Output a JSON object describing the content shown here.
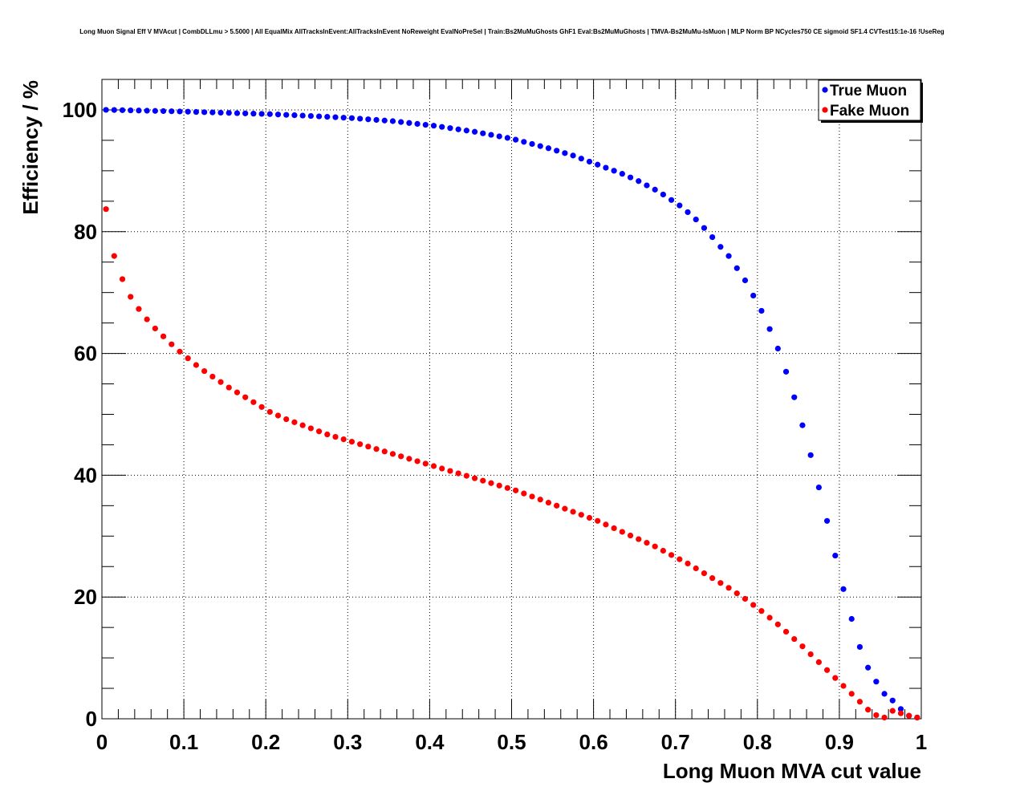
{
  "chart_data": {
    "type": "scatter",
    "title": "Long Muon Signal Eff V MVAcut | CombDLLmu > 5.5000 | All EqualMix AllTracksInEvent:AllTracksInEvent NoReweight EvalNoPreSel | Train:Bs2MuMuGhosts GhF1 Eval:Bs2MuMuGhosts | TMVA-Bs2MuMu-IsMuon | MLP Norm BP NCycles750 CE sigmoid SF1.4 CVTest15:1e-16 !UseReg",
    "xlabel": "Long Muon MVA cut value",
    "ylabel": "Efficiency / %",
    "xlim": [
      0,
      1
    ],
    "ylim": [
      0,
      105
    ],
    "xticks": [
      0,
      0.1,
      0.2,
      0.3,
      0.4,
      0.5,
      0.6,
      0.7,
      0.8,
      0.9,
      1
    ],
    "xtick_labels": [
      "0",
      "0.1",
      "0.2",
      "0.3",
      "0.4",
      "0.5",
      "0.6",
      "0.7",
      "0.8",
      "0.9",
      "1"
    ],
    "yticks": [
      0,
      20,
      40,
      60,
      80,
      100
    ],
    "ytick_labels": [
      "0",
      "20",
      "40",
      "60",
      "80",
      "100"
    ],
    "grid": true,
    "legend_position": "top-right",
    "x": [
      0.005,
      0.015,
      0.025,
      0.035,
      0.045,
      0.055,
      0.065,
      0.075,
      0.085,
      0.095,
      0.105,
      0.115,
      0.125,
      0.135,
      0.145,
      0.155,
      0.165,
      0.175,
      0.185,
      0.195,
      0.205,
      0.215,
      0.225,
      0.235,
      0.245,
      0.255,
      0.265,
      0.275,
      0.285,
      0.295,
      0.305,
      0.315,
      0.325,
      0.335,
      0.345,
      0.355,
      0.365,
      0.375,
      0.385,
      0.395,
      0.405,
      0.415,
      0.425,
      0.435,
      0.445,
      0.455,
      0.465,
      0.475,
      0.485,
      0.495,
      0.505,
      0.515,
      0.525,
      0.535,
      0.545,
      0.555,
      0.565,
      0.575,
      0.585,
      0.595,
      0.605,
      0.615,
      0.625,
      0.635,
      0.645,
      0.655,
      0.665,
      0.675,
      0.685,
      0.695,
      0.705,
      0.715,
      0.725,
      0.735,
      0.745,
      0.755,
      0.765,
      0.775,
      0.785,
      0.795,
      0.805,
      0.815,
      0.825,
      0.835,
      0.845,
      0.855,
      0.865,
      0.875,
      0.885,
      0.895,
      0.905,
      0.915,
      0.925,
      0.935,
      0.945,
      0.955,
      0.965,
      0.975,
      0.985,
      0.995
    ],
    "series": [
      {
        "name": "True Muon",
        "color": "#0000ff",
        "values": [
          100,
          99.98,
          99.95,
          99.92,
          99.89,
          99.86,
          99.83,
          99.8,
          99.77,
          99.74,
          99.7,
          99.66,
          99.62,
          99.58,
          99.54,
          99.5,
          99.46,
          99.42,
          99.38,
          99.34,
          99.3,
          99.24,
          99.18,
          99.12,
          99.06,
          99,
          98.93,
          98.86,
          98.79,
          98.72,
          98.65,
          98.55,
          98.45,
          98.35,
          98.25,
          98.15,
          98.0,
          97.85,
          97.7,
          97.55,
          97.4,
          97.2,
          97.0,
          96.8,
          96.6,
          96.4,
          96.15,
          95.9,
          95.65,
          95.4,
          95.1,
          94.75,
          94.4,
          94.05,
          93.7,
          93.3,
          92.9,
          92.5,
          92.0,
          91.5,
          91.0,
          90.5,
          90.0,
          89.5,
          88.9,
          88.3,
          87.6,
          86.9,
          86.1,
          85.2,
          84.3,
          83.2,
          82.0,
          80.6,
          79.1,
          77.5,
          76.0,
          74.0,
          72.0,
          69.5,
          67.0,
          64.0,
          60.8,
          57.0,
          52.8,
          48.2,
          43.3,
          38.0,
          32.5,
          26.8,
          21.3,
          16.4,
          11.8,
          8.4,
          6.1,
          4.1,
          3.0,
          1.6,
          0.5,
          0.2
        ]
      },
      {
        "name": "Fake Muon",
        "color": "#ff0000",
        "values": [
          83.7,
          76.0,
          72.2,
          69.3,
          67.3,
          65.6,
          64.1,
          62.8,
          61.5,
          60.3,
          59.2,
          58.1,
          57.1,
          56.2,
          55.3,
          54.4,
          53.6,
          52.8,
          52.0,
          51.2,
          50.4,
          49.8,
          49.2,
          48.7,
          48.2,
          47.7,
          47.2,
          46.7,
          46.3,
          45.9,
          45.5,
          45.1,
          44.7,
          44.3,
          43.9,
          43.5,
          43.1,
          42.7,
          42.3,
          41.9,
          41.5,
          41.1,
          40.7,
          40.3,
          39.9,
          39.5,
          39.1,
          38.7,
          38.3,
          37.9,
          37.5,
          37.0,
          36.5,
          36.0,
          35.5,
          35.0,
          34.5,
          34.0,
          33.5,
          33.0,
          32.5,
          31.9,
          31.3,
          30.7,
          30.1,
          29.5,
          28.9,
          28.3,
          27.6,
          26.9,
          26.2,
          25.5,
          24.7,
          23.9,
          23.1,
          22.3,
          21.5,
          20.6,
          19.7,
          18.7,
          17.7,
          16.6,
          15.5,
          14.3,
          13.1,
          11.9,
          10.6,
          9.3,
          8.0,
          6.7,
          5.4,
          4.1,
          2.8,
          1.5,
          0.6,
          0.2,
          1.3,
          0.9,
          0.5,
          0.2
        ]
      }
    ]
  }
}
